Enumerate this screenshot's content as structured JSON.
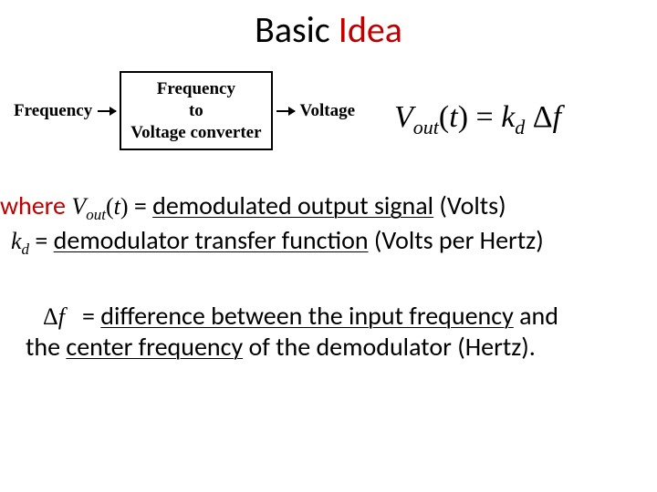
{
  "title": {
    "part1": "Basic",
    "part2": "Idea",
    "colors": {
      "part1": "#000000",
      "part2": "#c00000"
    },
    "fontsize": 40
  },
  "diagram": {
    "input_label": "Frequency",
    "box_line1": "Frequency",
    "box_line2": "to",
    "box_line3": "Voltage converter",
    "output_label": "Voltage",
    "label_fontsize": 19,
    "border_color": "#000000"
  },
  "equation": {
    "lhs_var": "V",
    "lhs_sub": "out",
    "lhs_arg": "t",
    "rhs_k": "k",
    "rhs_k_sub": "d",
    "rhs_delta": "Δ",
    "rhs_f": "f",
    "fontsize": 34
  },
  "definitions": {
    "where": "where",
    "vout": {
      "sym": "V",
      "sub": "out",
      "arg": "t",
      "desc_pre": " = ",
      "desc_u": "demodulated output signal",
      "desc_post": " (Volts)"
    },
    "kd": {
      "sym": "k",
      "sub": "d",
      "desc_pre": " = ",
      "desc_u": "demodulator transfer function",
      "desc_post": " (Volts per Hertz)"
    },
    "df": {
      "delta": "Δ",
      "sym": "f",
      "line1_pre": " = ",
      "line1_u1": "difference between the input frequency",
      "line1_post": " and",
      "line2_pre": "the ",
      "line2_u": "center frequency",
      "line2_post": " of the demodulator (Hertz)."
    }
  },
  "colors": {
    "accent": "#c00000",
    "text": "#000000",
    "bg": "#ffffff"
  },
  "body_fontsize": 28
}
